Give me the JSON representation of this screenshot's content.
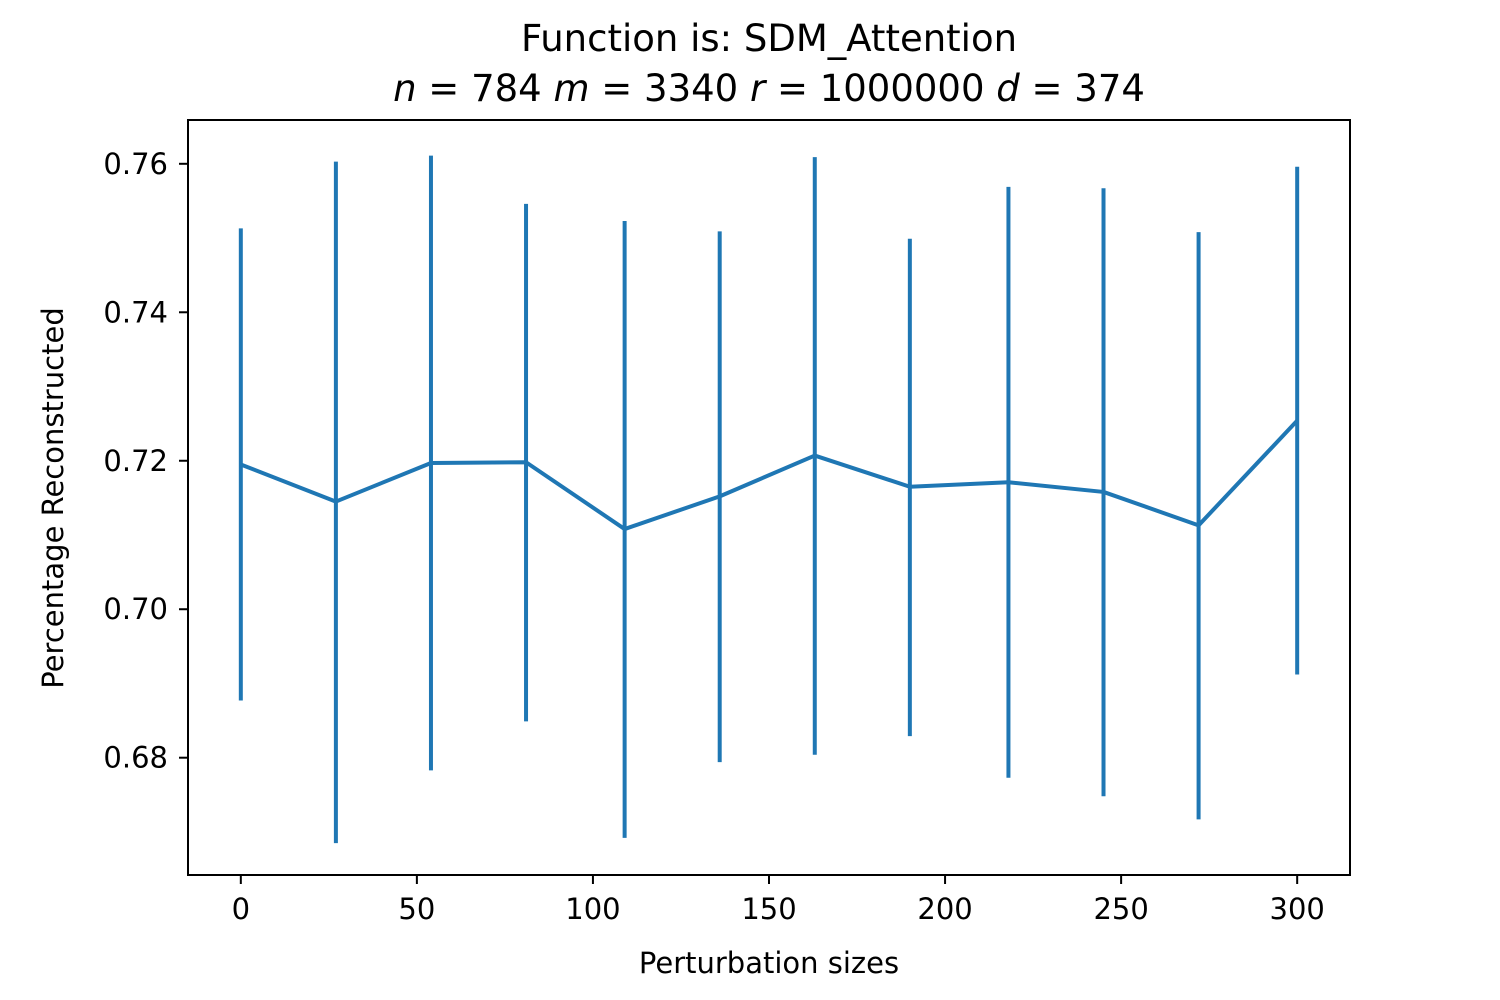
{
  "chart_data": {
    "type": "line",
    "title": "Function is: SDM_Attention",
    "subtitle": {
      "parts": [
        {
          "var": "n",
          "eq": " = ",
          "val": "784"
        },
        {
          "var": "m",
          "eq": " = ",
          "val": "3340"
        },
        {
          "var": "r",
          "eq": " = ",
          "val": "1000000"
        },
        {
          "var": "d",
          "eq": " = ",
          "val": "374"
        }
      ]
    },
    "xlabel": "Perturbation sizes",
    "ylabel": "Percentage Reconstructed",
    "xlim": [
      -15,
      315
    ],
    "ylim": [
      0.6642,
      0.7659
    ],
    "xticks": [
      0,
      50,
      100,
      150,
      200,
      250,
      300
    ],
    "xtick_labels": [
      "0",
      "50",
      "100",
      "150",
      "200",
      "250",
      "300"
    ],
    "yticks": [
      0.68,
      0.7,
      0.72,
      0.74,
      0.76
    ],
    "ytick_labels": [
      "0.68",
      "0.70",
      "0.72",
      "0.74",
      "0.76"
    ],
    "grid": false,
    "series": [
      {
        "color": "#1f77b4",
        "x": [
          0,
          27,
          54,
          81,
          109,
          136,
          163,
          190,
          218,
          245,
          272,
          300
        ],
        "y": [
          0.7195,
          0.7145,
          0.7197,
          0.7198,
          0.7108,
          0.7152,
          0.7207,
          0.7165,
          0.7171,
          0.7158,
          0.7113,
          0.7254
        ],
        "err_low": [
          0.6877,
          0.6685,
          0.6783,
          0.6849,
          0.6692,
          0.6794,
          0.6804,
          0.6829,
          0.6773,
          0.6748,
          0.6717,
          0.6912
        ],
        "err_high": [
          0.7513,
          0.7603,
          0.7611,
          0.7546,
          0.7523,
          0.7509,
          0.7609,
          0.7499,
          0.7569,
          0.7567,
          0.7508,
          0.7596
        ]
      }
    ]
  }
}
